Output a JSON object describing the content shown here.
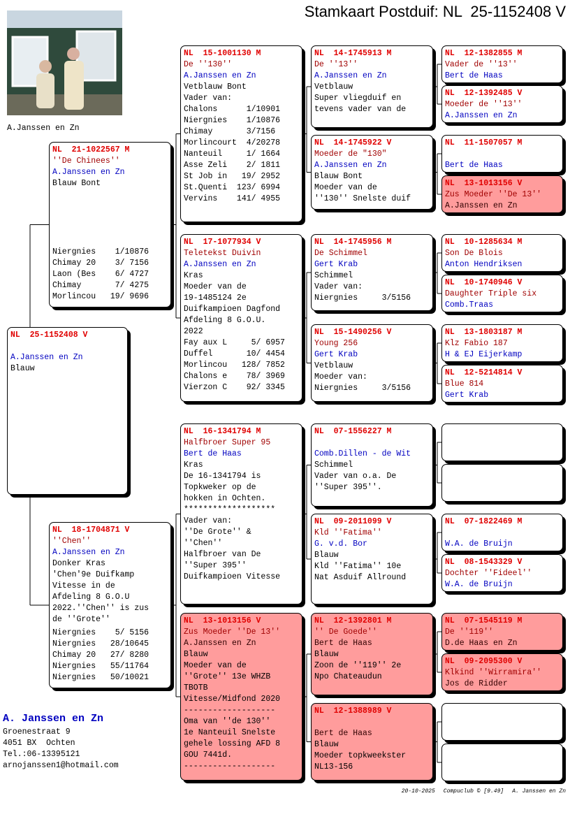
{
  "title": "Stamkaart Postduif: NL  25-1152408 V",
  "photo_caption": "A.Janssen en Zn",
  "pedigree": {
    "subject": {
      "ring": "NL  25-1152408 V",
      "name": null,
      "owner": "A.Janssen en Zn",
      "info": [
        "Blauw"
      ]
    },
    "parents": [
      {
        "ring": "NL  21-1022567 M",
        "name": "''De Chinees''",
        "owner": "A.Janssen en Zn",
        "info": [
          "Blauw Bont"
        ],
        "results": [
          "Niergnies    1/10876",
          "Chimay 20    3/ 7156",
          "Laon (Bes    6/ 4727",
          "Chimay       7/ 4275",
          "Morlincou   19/ 9696"
        ]
      },
      {
        "ring": "NL  18-1704871 V",
        "name": "''Chen''",
        "owner": "A.Janssen en Zn",
        "info": [
          "Donker Kras",
          "'Chen'9e Duifkamp",
          "Vitesse in de",
          "Afdeling 8 G.O.U",
          "2022.''Chen'' is zus",
          "de ''Grote''"
        ],
        "results": [
          "Niergnies    5/ 5156",
          "Niergnies   28/10645",
          "Chimay 20   27/ 8280",
          "Niergnies   55/11764",
          "Niergnies   50/10021"
        ]
      }
    ],
    "grandparents": [
      {
        "ring": "NL  15-1001130 M",
        "name": "De ''130''",
        "owner": "A.Janssen en Zn",
        "info": [
          "Vetblauw Bont",
          "Vader van:",
          "Chalons      1/10901",
          "Niergnies    1/10876",
          "Chimay       3/7156",
          "Morlincourt  4/20278",
          "Nanteuil     1/ 1664",
          "Asse Zeli    2/ 1811",
          "St Job in   19/ 2952",
          "St.Quenti  123/ 6994",
          "Vervins    141/ 4955"
        ]
      },
      {
        "ring": "NL  17-1077934 V",
        "name": "Teletekst Duivin",
        "owner": "A.Janssen en Zn",
        "info": [
          "Kras",
          "Moeder van de",
          "19-1485124 2e",
          "Duifkampioen Dagfond",
          "Afdeling 8 G.O.U.",
          "2022",
          "Fay aux L     5/ 6957",
          "Duffel       10/ 4454",
          "Morlincou   128/ 7852",
          "Chalons e    78/ 3969",
          "Vierzon C    92/ 3345"
        ]
      },
      {
        "ring": "NL  16-1341794 M",
        "name": "Halfbroer Super 95",
        "owner": "Bert de Haas",
        "info": [
          "Kras",
          "De 16-1341794 is",
          "Topkweker op de",
          "hokken in Ochten.",
          "*******************",
          "Vader van:",
          "''De Grote'' &",
          "''Chen''",
          "Halfbroer van De",
          "''Super 395''",
          "Duifkampioen Vitesse"
        ]
      },
      {
        "ring": "NL  13-1013156 V",
        "name": "Zus Moeder ''De 13''",
        "owner": "A.Janssen en Zn",
        "highlight": true,
        "info": [
          "Blauw",
          "Moeder van de",
          "''Grote'' 13e WHZB",
          "TBOTB",
          "Vitesse/Midfond 2020",
          "-------------------",
          "Oma van ''de 130''",
          "1e Nanteuil Snelste",
          "gehele lossing AFD 8",
          "GOU 7441d.",
          "-------------------"
        ]
      }
    ],
    "great_grandparents": [
      {
        "ring": "NL  14-1745913 M",
        "name": "De ''13''",
        "owner": "A.Janssen en Zn",
        "info": [
          "Vetblauw",
          "Super vliegduif en",
          "tevens vader van de"
        ]
      },
      {
        "ring": "NL  14-1745922 V",
        "name": "Moeder de \"130\"",
        "owner": "A.Janssen en Zn",
        "info": [
          "Blauw Bont",
          "Moeder van de",
          "''130'' Snelste duif"
        ]
      },
      {
        "ring": "NL  14-1745956 M",
        "name": "De Schimmel",
        "owner": "Gert Krab",
        "info": [
          "Schimmel",
          "Vader van:",
          "Niergnies     3/5156"
        ]
      },
      {
        "ring": "NL  15-1490256 V",
        "name": "Young 256",
        "owner": "Gert Krab",
        "info": [
          "Vetblauw",
          "Moeder van:",
          "Niergnies     3/5156"
        ]
      },
      {
        "ring": "NL  07-1556227 M",
        "name": null,
        "owner": "Comb.Dillen - de Wit",
        "info": [
          "Schimmel",
          "Vader van o.a. De",
          "''Super 395''."
        ]
      },
      {
        "ring": "NL  09-2011099 V",
        "name": "Kld ''Fatima''",
        "owner": "G. v.d. Bor",
        "info": [
          "Blauw",
          "Kld ''Fatima'' 10e",
          "Nat Asduif Allround"
        ]
      },
      {
        "ring": "NL  12-1392801 M",
        "name": "'' De Goede''",
        "owner": "Bert de Haas",
        "highlight": true,
        "info": [
          "Blauw",
          "Zoon de ''119'' 2e",
          "Npo Chateaudun"
        ]
      },
      {
        "ring": "NL  12-1388989 V",
        "name": null,
        "owner": "Bert de Haas",
        "highlight": true,
        "info": [
          "Blauw",
          "Moeder topkweekster",
          "NL13-156"
        ]
      }
    ],
    "great_great_grandparents": [
      {
        "ring": "NL  12-1382855 M",
        "name": "Vader de ''13''",
        "owner": "Bert de Haas"
      },
      {
        "ring": "NL  12-1392485 V",
        "name": "Moeder de ''13''",
        "owner": "A.Janssen en Zn"
      },
      {
        "ring": "NL  11-1507057 M",
        "name": null,
        "owner": "Bert de Haas"
      },
      {
        "ring": "NL  13-1013156 V",
        "name": "Zus Moeder ''De 13''",
        "owner": "A.Janssen en Zn",
        "highlight": true
      },
      {
        "ring": "NL  10-1285634 M",
        "name": "Son De Blois",
        "owner": "Anton Hendriksen"
      },
      {
        "ring": "NL  10-1740946 V",
        "name": "Daughter Triple six",
        "owner": "Comb.Traas"
      },
      {
        "ring": "NL  13-1803187 M",
        "name": "Klz Fabio 187",
        "owner": "H & EJ Eijerkamp"
      },
      {
        "ring": "NL  12-5214814 V",
        "name": "Blue 814",
        "owner": "Gert Krab"
      },
      null,
      null,
      {
        "ring": "NL  07-1822469 M",
        "name": null,
        "owner": "W.A. de Bruijn"
      },
      {
        "ring": "NL  08-1543329 V",
        "name": "Dochter ''Fideel''",
        "owner": "W.A. de Bruijn"
      },
      {
        "ring": "NL  07-1545119 M",
        "name": "De ''119''",
        "owner": "D.de Haas en Zn",
        "highlight": true
      },
      {
        "ring": "NL  09-2095300 V",
        "name": "Klkind ''Wirramira''",
        "owner": "Jos de Ridder",
        "highlight": true
      },
      null,
      null
    ]
  },
  "contact": {
    "name": "A. Janssen en Zn",
    "street": "Groenestraat 9",
    "city": "4051 BX  Ochten",
    "phone": "Tel.:06-13395121",
    "email": "arnojanssen1@hotmail.com"
  },
  "footer": {
    "date": "20-10-2025",
    "software": "Compuclub © [9.49]",
    "breeder": "A. Janssen en Zn"
  }
}
